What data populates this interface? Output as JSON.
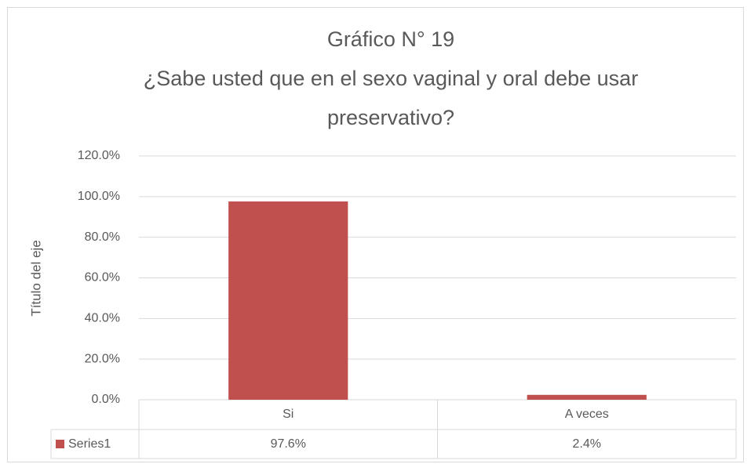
{
  "chart_data": {
    "type": "bar",
    "title": "Gráfico N° 19",
    "subtitle": "¿Sabe usted que en el sexo vaginal y oral debe usar preservativo?",
    "y_label": "Título del eje",
    "categories": [
      "Si",
      "A veces"
    ],
    "series": [
      {
        "name": "Series1",
        "color": "#c0504d",
        "values": [
          97.6,
          2.4
        ],
        "value_labels": [
          "97.6%",
          "2.4%"
        ]
      }
    ],
    "ylim": [
      0,
      120
    ],
    "yticks": [
      {
        "value": 0,
        "label": "0.0%"
      },
      {
        "value": 20,
        "label": "20.0%"
      },
      {
        "value": 40,
        "label": "40.0%"
      },
      {
        "value": 60,
        "label": "60.0%"
      },
      {
        "value": 80,
        "label": "80.0%"
      },
      {
        "value": 100,
        "label": "100.0%"
      },
      {
        "value": 120,
        "label": "120.0%"
      }
    ],
    "grid": true
  }
}
